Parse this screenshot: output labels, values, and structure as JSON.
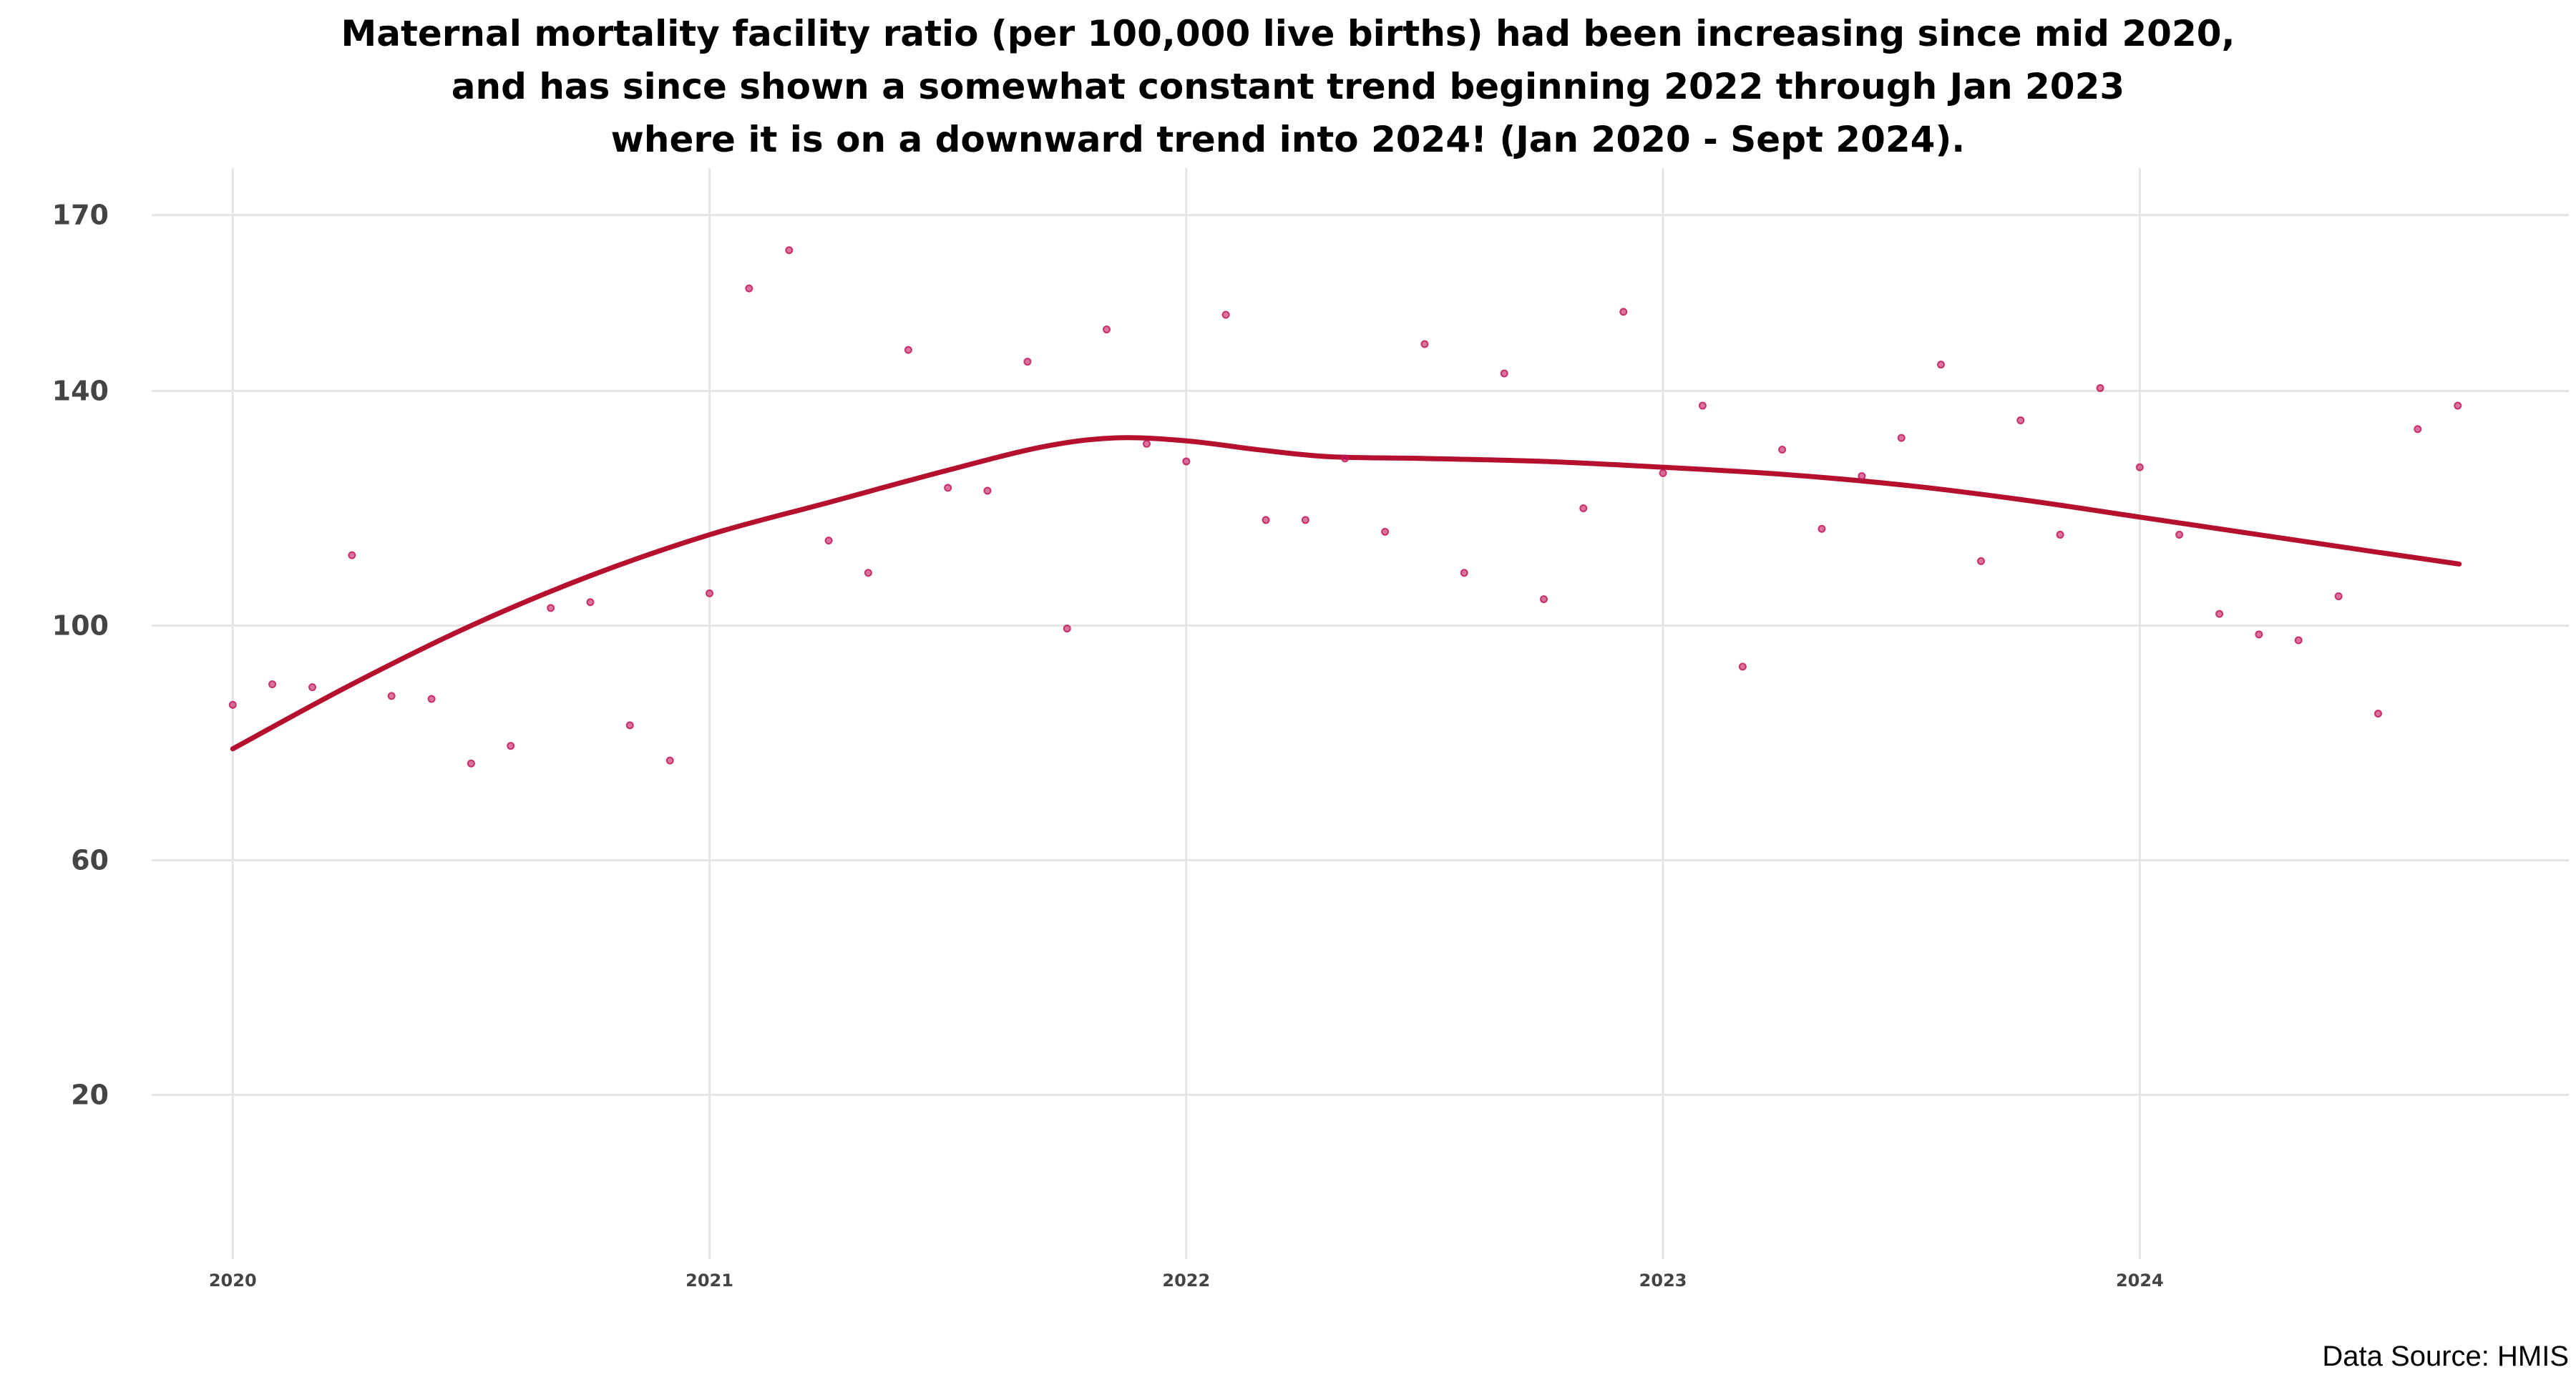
{
  "chart_data": {
    "type": "scatter",
    "title_lines": [
      "Maternal mortality facility ratio (per 100,000 live births) had been increasing since mid 2020,",
      "and has since shown a somewhat constant trend beginning 2022 through Jan 2023",
      "where it is on a downward trend into 2024! (Jan 2020 - Sept 2024)."
    ],
    "caption": "Data Source: HMIS",
    "xlabel": "",
    "ylabel": "",
    "x_ticks": [
      2020,
      2021,
      2022,
      2023,
      2024
    ],
    "y_ticks": [
      20,
      60,
      100,
      140,
      170
    ],
    "xlim": [
      2019.83,
      2024.9
    ],
    "ylim": [
      -8,
      178
    ],
    "grid": true,
    "point_color": "#c2185b",
    "trend_color": "#b5102e",
    "points": [
      {
        "x": 2020.0,
        "y": 86.5
      },
      {
        "x": 2020.083,
        "y": 90.0
      },
      {
        "x": 2020.167,
        "y": 89.5
      },
      {
        "x": 2020.25,
        "y": 112.0
      },
      {
        "x": 2020.333,
        "y": 88.0
      },
      {
        "x": 2020.417,
        "y": 87.5
      },
      {
        "x": 2020.5,
        "y": 76.5
      },
      {
        "x": 2020.583,
        "y": 79.5
      },
      {
        "x": 2020.667,
        "y": 103.0
      },
      {
        "x": 2020.75,
        "y": 104.0
      },
      {
        "x": 2020.833,
        "y": 83.0
      },
      {
        "x": 2020.917,
        "y": 77.0
      },
      {
        "x": 2021.0,
        "y": 105.5
      },
      {
        "x": 2021.083,
        "y": 157.5
      },
      {
        "x": 2021.167,
        "y": 164.0
      },
      {
        "x": 2021.25,
        "y": 114.5
      },
      {
        "x": 2021.333,
        "y": 109.0
      },
      {
        "x": 2021.417,
        "y": 147.0
      },
      {
        "x": 2021.5,
        "y": 123.5
      },
      {
        "x": 2021.583,
        "y": 123.0
      },
      {
        "x": 2021.667,
        "y": 145.0
      },
      {
        "x": 2021.75,
        "y": 99.5
      },
      {
        "x": 2021.833,
        "y": 150.5
      },
      {
        "x": 2021.917,
        "y": 131.0
      },
      {
        "x": 2022.0,
        "y": 128.0
      },
      {
        "x": 2022.083,
        "y": 153.0
      },
      {
        "x": 2022.167,
        "y": 118.0
      },
      {
        "x": 2022.25,
        "y": 118.0
      },
      {
        "x": 2022.333,
        "y": 128.5
      },
      {
        "x": 2022.417,
        "y": 116.0
      },
      {
        "x": 2022.5,
        "y": 148.0
      },
      {
        "x": 2022.583,
        "y": 109.0
      },
      {
        "x": 2022.667,
        "y": 143.0
      },
      {
        "x": 2022.75,
        "y": 104.5
      },
      {
        "x": 2022.833,
        "y": 120.0
      },
      {
        "x": 2022.917,
        "y": 153.5
      },
      {
        "x": 2023.0,
        "y": 126.0
      },
      {
        "x": 2023.083,
        "y": 137.5
      },
      {
        "x": 2023.167,
        "y": 93.0
      },
      {
        "x": 2023.25,
        "y": 130.0
      },
      {
        "x": 2023.333,
        "y": 116.5
      },
      {
        "x": 2023.417,
        "y": 125.5
      },
      {
        "x": 2023.5,
        "y": 132.0
      },
      {
        "x": 2023.583,
        "y": 144.5
      },
      {
        "x": 2023.667,
        "y": 111.0
      },
      {
        "x": 2023.75,
        "y": 135.0
      },
      {
        "x": 2023.833,
        "y": 115.5
      },
      {
        "x": 2023.917,
        "y": 140.5
      },
      {
        "x": 2024.0,
        "y": 127.0
      },
      {
        "x": 2024.083,
        "y": 115.5
      },
      {
        "x": 2024.167,
        "y": 102.0
      },
      {
        "x": 2024.25,
        "y": 98.5
      },
      {
        "x": 2024.333,
        "y": 97.5
      },
      {
        "x": 2024.417,
        "y": 105.0
      },
      {
        "x": 2024.5,
        "y": 85.0
      },
      {
        "x": 2024.583,
        "y": 133.5
      },
      {
        "x": 2024.667,
        "y": 137.5
      }
    ],
    "trend": [
      {
        "x": 2020.0,
        "y": 79.0
      },
      {
        "x": 2020.25,
        "y": 90.0
      },
      {
        "x": 2020.5,
        "y": 100.0
      },
      {
        "x": 2020.75,
        "y": 108.5
      },
      {
        "x": 2021.0,
        "y": 115.5
      },
      {
        "x": 2021.25,
        "y": 121.0
      },
      {
        "x": 2021.5,
        "y": 126.5
      },
      {
        "x": 2021.7,
        "y": 130.5
      },
      {
        "x": 2021.85,
        "y": 132.0
      },
      {
        "x": 2022.0,
        "y": 131.5
      },
      {
        "x": 2022.15,
        "y": 130.0
      },
      {
        "x": 2022.3,
        "y": 128.8
      },
      {
        "x": 2022.5,
        "y": 128.5
      },
      {
        "x": 2022.75,
        "y": 128.0
      },
      {
        "x": 2023.0,
        "y": 127.0
      },
      {
        "x": 2023.25,
        "y": 125.8
      },
      {
        "x": 2023.5,
        "y": 124.0
      },
      {
        "x": 2023.75,
        "y": 121.5
      },
      {
        "x": 2024.0,
        "y": 118.5
      },
      {
        "x": 2024.25,
        "y": 115.5
      },
      {
        "x": 2024.5,
        "y": 112.5
      },
      {
        "x": 2024.67,
        "y": 110.5
      }
    ]
  }
}
